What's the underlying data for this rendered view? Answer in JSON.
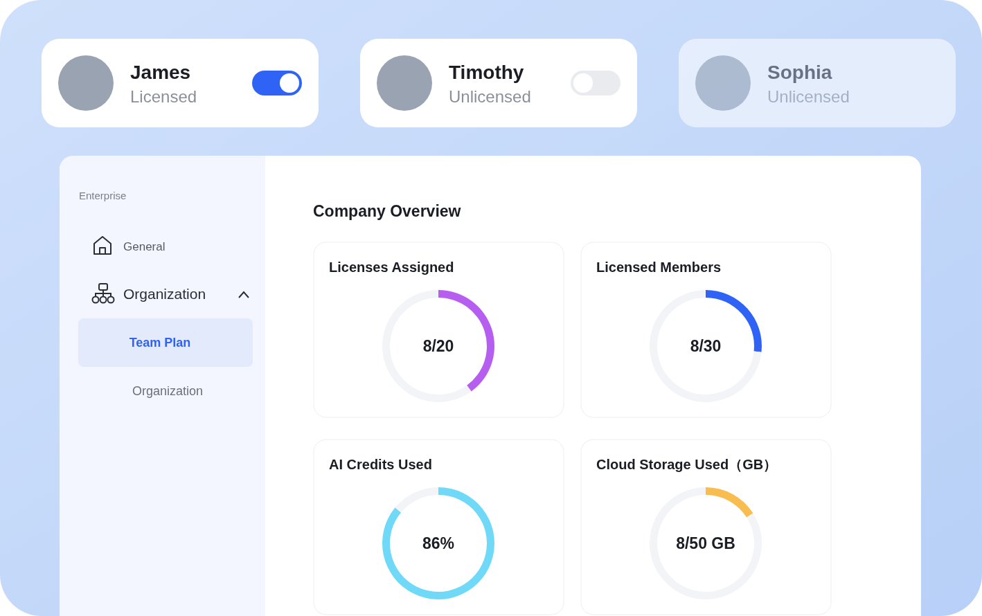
{
  "chart_data": [
    {
      "type": "other",
      "annotations": [
        "James",
        "Licensed",
        "Timothy",
        "Unlicensed",
        "Sophia",
        "Unlicensed",
        "Enterprise",
        "General",
        "Organization",
        "Team Plan",
        "Organization",
        "Company Overview"
      ]
    },
    {
      "type": "donut",
      "title": "Licenses Assigned",
      "categories": [
        null,
        null
      ],
      "values": [
        40,
        60
      ],
      "colors": [
        "#b65ef0",
        "#f3f4f7"
      ],
      "annotations": [
        "8/20"
      ]
    },
    {
      "type": "donut",
      "title": "Licensed Members",
      "categories": [
        null,
        null
      ],
      "values": [
        26.7,
        73.3
      ],
      "colors": [
        "#2f63f5",
        "#f3f4f7"
      ],
      "annotations": [
        "8/30"
      ]
    },
    {
      "type": "donut",
      "title": "AI Credits Used",
      "categories": [
        null,
        null
      ],
      "values": [
        86,
        14
      ],
      "colors": [
        "#6fd9f7",
        "#f3f4f7"
      ],
      "annotations": [
        "86%"
      ]
    },
    {
      "type": "donut",
      "title": "Cloud Storage Used（GB）",
      "categories": [
        null,
        null
      ],
      "values": [
        16,
        84
      ],
      "colors": [
        "#f8bd4e",
        "#f3f4f7"
      ],
      "annotations": [
        "8/50 GB"
      ]
    }
  ]
}
